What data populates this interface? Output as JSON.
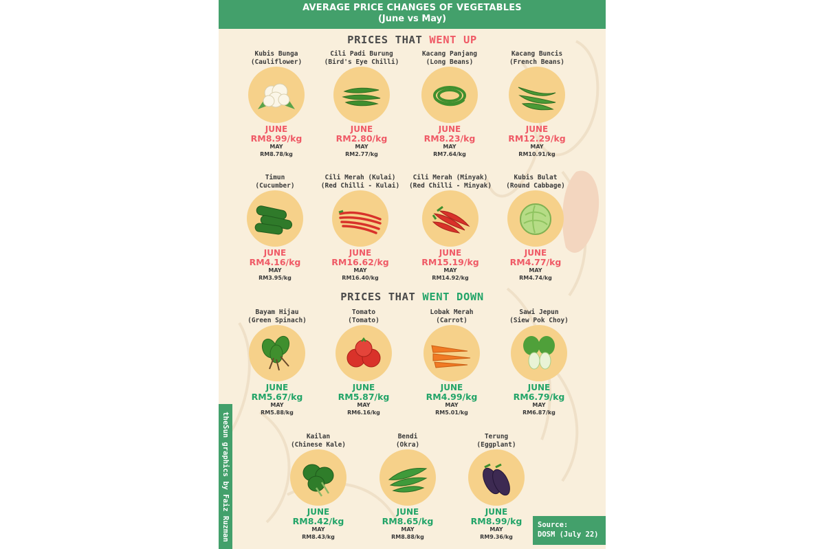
{
  "header": {
    "title": "AVERAGE PRICE CHANGES OF VEGETABLES",
    "subtitle": "(June vs May)"
  },
  "sections": {
    "up": {
      "prefix": "PRICES THAT ",
      "highlight": "WENT UP"
    },
    "down": {
      "prefix": "PRICES THAT ",
      "highlight": "WENT DOWN"
    }
  },
  "month_current": "JUNE",
  "month_previous": "MAY",
  "items_up": [
    {
      "local": "Kubis Bunga",
      "english": "(Cauliflower)",
      "june": "RM8.99/kg",
      "may": "RM8.78/kg",
      "icon": "cauliflower-icon"
    },
    {
      "local": "Cili Padi Burung",
      "english": "(Bird's Eye Chilli)",
      "june": "RM2.80/kg",
      "may": "RM2.77/kg",
      "icon": "birds-eye-chilli-icon"
    },
    {
      "local": "Kacang Panjang",
      "english": "(Long Beans)",
      "june": "RM8.23/kg",
      "may": "RM7.64/kg",
      "icon": "long-beans-icon"
    },
    {
      "local": "Kacang Buncis",
      "english": "(French Beans)",
      "june": "RM12.29/kg",
      "may": "RM10.91/kg",
      "icon": "french-beans-icon"
    },
    {
      "local": "Timun",
      "english": "(Cucumber)",
      "june": "RM4.16/kg",
      "may": "RM3.95/kg",
      "icon": "cucumber-icon"
    },
    {
      "local": "Cili Merah (Kulai)",
      "english": "(Red Chilli - Kulai)",
      "june": "RM16.62/kg",
      "may": "RM16.40/kg",
      "icon": "red-chilli-kulai-icon"
    },
    {
      "local": "Cili Merah (Minyak)",
      "english": "(Red Chilli - Minyak)",
      "june": "RM15.19/kg",
      "may": "RM14.92/kg",
      "icon": "red-chilli-minyak-icon"
    },
    {
      "local": "Kubis Bulat",
      "english": "(Round Cabbage)",
      "june": "RM4.77/kg",
      "may": "RM4.74/kg",
      "icon": "round-cabbage-icon"
    }
  ],
  "items_down": [
    {
      "local": "Bayam Hijau",
      "english": "(Green Spinach)",
      "june": "RM5.67/kg",
      "may": "RM5.88/kg",
      "icon": "green-spinach-icon"
    },
    {
      "local": "Tomato",
      "english": "(Tomato)",
      "june": "RM5.87/kg",
      "may": "RM6.16/kg",
      "icon": "tomato-icon"
    },
    {
      "local": "Lobak Merah",
      "english": "(Carrot)",
      "june": "RM4.99/kg",
      "may": "RM5.01/kg",
      "icon": "carrot-icon"
    },
    {
      "local": "Sawi Jepun",
      "english": "(Siew Pok Choy)",
      "june": "RM6.79/kg",
      "may": "RM6.87/kg",
      "icon": "pok-choy-icon"
    },
    {
      "local": "Kailan",
      "english": "(Chinese Kale)",
      "june": "RM8.42/kg",
      "may": "RM8.43/kg",
      "icon": "chinese-kale-icon"
    },
    {
      "local": "Bendi",
      "english": "(Okra)",
      "june": "RM8.65/kg",
      "may": "RM8.88/kg",
      "icon": "okra-icon"
    },
    {
      "local": "Terung",
      "english": "(Eggplant)",
      "june": "RM8.99/kg",
      "may": "RM9.36/kg",
      "icon": "eggplant-icon"
    }
  ],
  "credit": "theSun graphics by Faiz Ruzman",
  "source": {
    "label": "Source:",
    "value": "DOSM (July 22)"
  },
  "colors": {
    "header_green": "#43a06b",
    "up_red": "#ef5a66",
    "down_green": "#22a468",
    "circle_yellow": "#f6d18a",
    "background": "#f9efdc"
  }
}
